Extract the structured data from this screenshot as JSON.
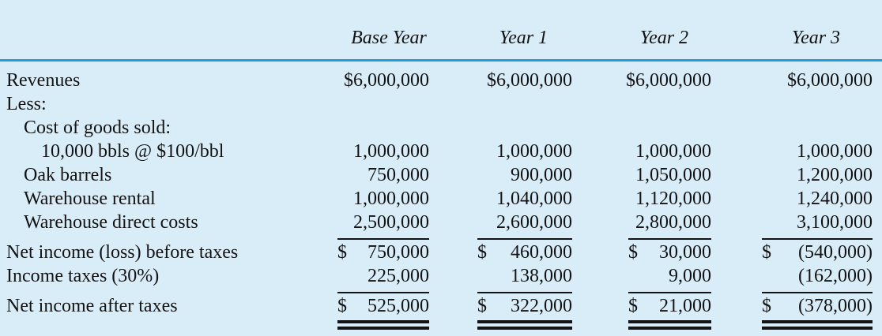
{
  "table": {
    "colors": {
      "background": "#d9edf9",
      "rule_blue": "#1f9fda",
      "ink": "#131313"
    },
    "col_headers": [
      "Base Year",
      "Year 1",
      "Year 2",
      "Year 3"
    ],
    "rows": [
      {
        "label": "Revenues",
        "indent": 0,
        "cells": [
          "$6,000,000",
          "$6,000,000",
          "$6,000,000",
          "$6,000,000"
        ]
      },
      {
        "label": "Less:",
        "indent": 0,
        "cells": [
          "",
          "",
          "",
          ""
        ]
      },
      {
        "label": "Cost of goods sold:",
        "indent": 1,
        "cells": [
          "",
          "",
          "",
          ""
        ]
      },
      {
        "label": "10,000 bbls @ $100/bbl",
        "indent": 2,
        "cells": [
          "1,000,000",
          "1,000,000",
          "1,000,000",
          "1,000,000"
        ]
      },
      {
        "label": "Oak barrels",
        "indent": 1,
        "cells": [
          "750,000",
          "900,000",
          "1,050,000",
          "1,200,000"
        ]
      },
      {
        "label": "Warehouse rental",
        "indent": 1,
        "cells": [
          "1,000,000",
          "1,040,000",
          "1,120,000",
          "1,240,000"
        ]
      },
      {
        "label": "Warehouse direct costs",
        "indent": 1,
        "cells": [
          "2,500,000",
          "2,600,000",
          "2,800,000",
          "3,100,000"
        ]
      },
      {
        "label": "Net income (loss) before taxes",
        "indent": 0,
        "currency": "$",
        "cells": [
          "750,000",
          "460,000",
          "30,000",
          "(540,000)"
        ]
      },
      {
        "label": "Income taxes (30%)",
        "indent": 0,
        "cells": [
          "225,000",
          "138,000",
          "9,000",
          "(162,000)"
        ]
      },
      {
        "label": "Net income after taxes",
        "indent": 0,
        "currency": "$",
        "cells": [
          "525,000",
          "322,000",
          "21,000",
          "(378,000)"
        ]
      }
    ]
  }
}
